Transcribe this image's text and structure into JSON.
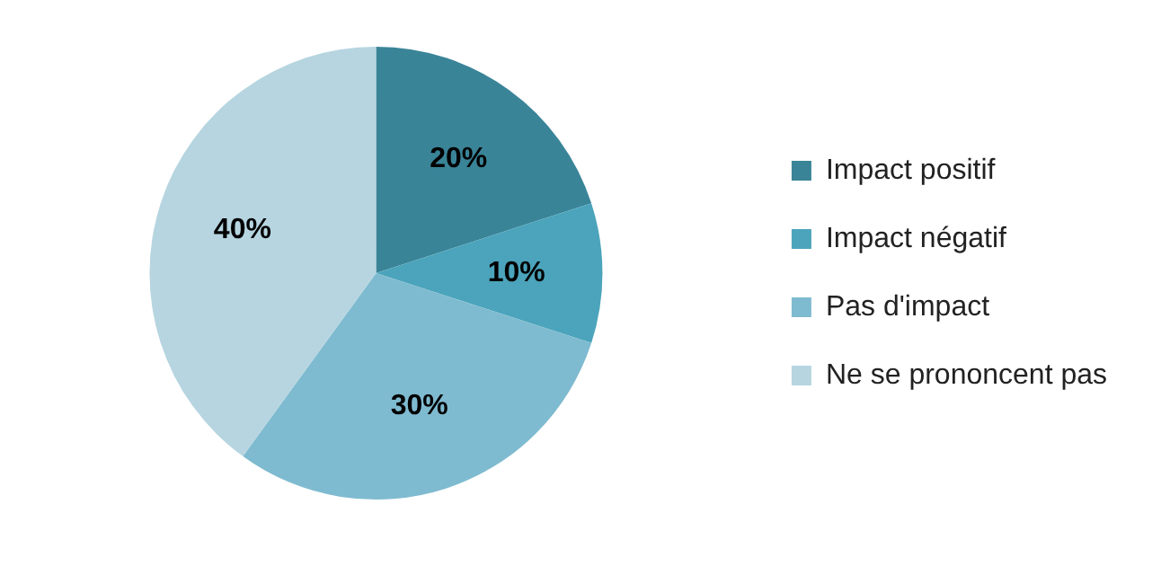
{
  "chart_data": {
    "type": "pie",
    "categories": [
      "Impact positif",
      "Impact négatif",
      "Pas d'impact",
      "Ne se prononcent pas"
    ],
    "values": [
      20,
      10,
      30,
      40
    ],
    "colors": [
      "#3a8498",
      "#4ba4bb",
      "#7fbbd0",
      "#b6d5e0"
    ],
    "value_labels": [
      "20%",
      "10%",
      "30%",
      "40%"
    ],
    "legend": "right"
  }
}
